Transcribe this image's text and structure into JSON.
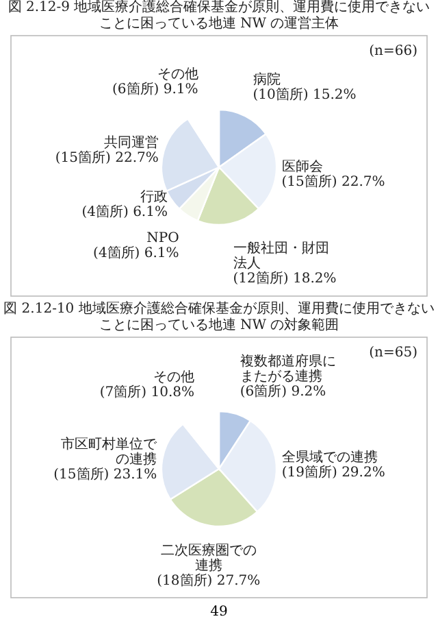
{
  "chart_data": [
    {
      "type": "pie",
      "title": "図 2.12-9 地域医療介護総合確保基金が原則、運用費に使用できないことに困っている地連 NW の運営主体",
      "annotations": [
        "(n=66)"
      ],
      "categories": [
        "病院",
        "医師会",
        "一般社団・財団法人",
        "NPO",
        "行政",
        "共同運営",
        "その他"
      ],
      "values": [
        15.2,
        22.7,
        18.2,
        6.1,
        6.1,
        22.7,
        9.1
      ],
      "value_labels": [
        "(10箇所) 15.2%",
        "(15箇所) 22.7%",
        "(12箇所) 18.2%",
        "(4箇所) 6.1%",
        "(4箇所) 6.1%",
        "(15箇所) 22.7%",
        "(6箇所) 9.1%"
      ],
      "colors": [
        "#b4c8e6",
        "#eaf0f9",
        "#d5e2b8",
        "#f4f7ec",
        "#d2ddef",
        "#d9e3f2",
        "#ffffff"
      ]
    },
    {
      "type": "pie",
      "title": "図 2.12-10 地域医療介護総合確保基金が原則、運用費に使用できないことに困っている地連 NW の対象範囲",
      "annotations": [
        "(n=65)",
        "49"
      ],
      "categories": [
        "複数都道府県にまたがる連携",
        "全県域での連携",
        "二次医療圏での連携",
        "市区町村単位での連携",
        "その他"
      ],
      "values": [
        9.2,
        29.2,
        27.7,
        23.1,
        10.8
      ],
      "value_labels": [
        "(6箇所) 9.2%",
        "(19箇所) 29.2%",
        "(18箇所) 27.7%",
        "(15箇所) 23.1%",
        "(7箇所) 10.8%"
      ],
      "colors": [
        "#b4c8e6",
        "#e8eef8",
        "#d5e2b8",
        "#dfe7f4",
        "#ffffff"
      ]
    }
  ]
}
